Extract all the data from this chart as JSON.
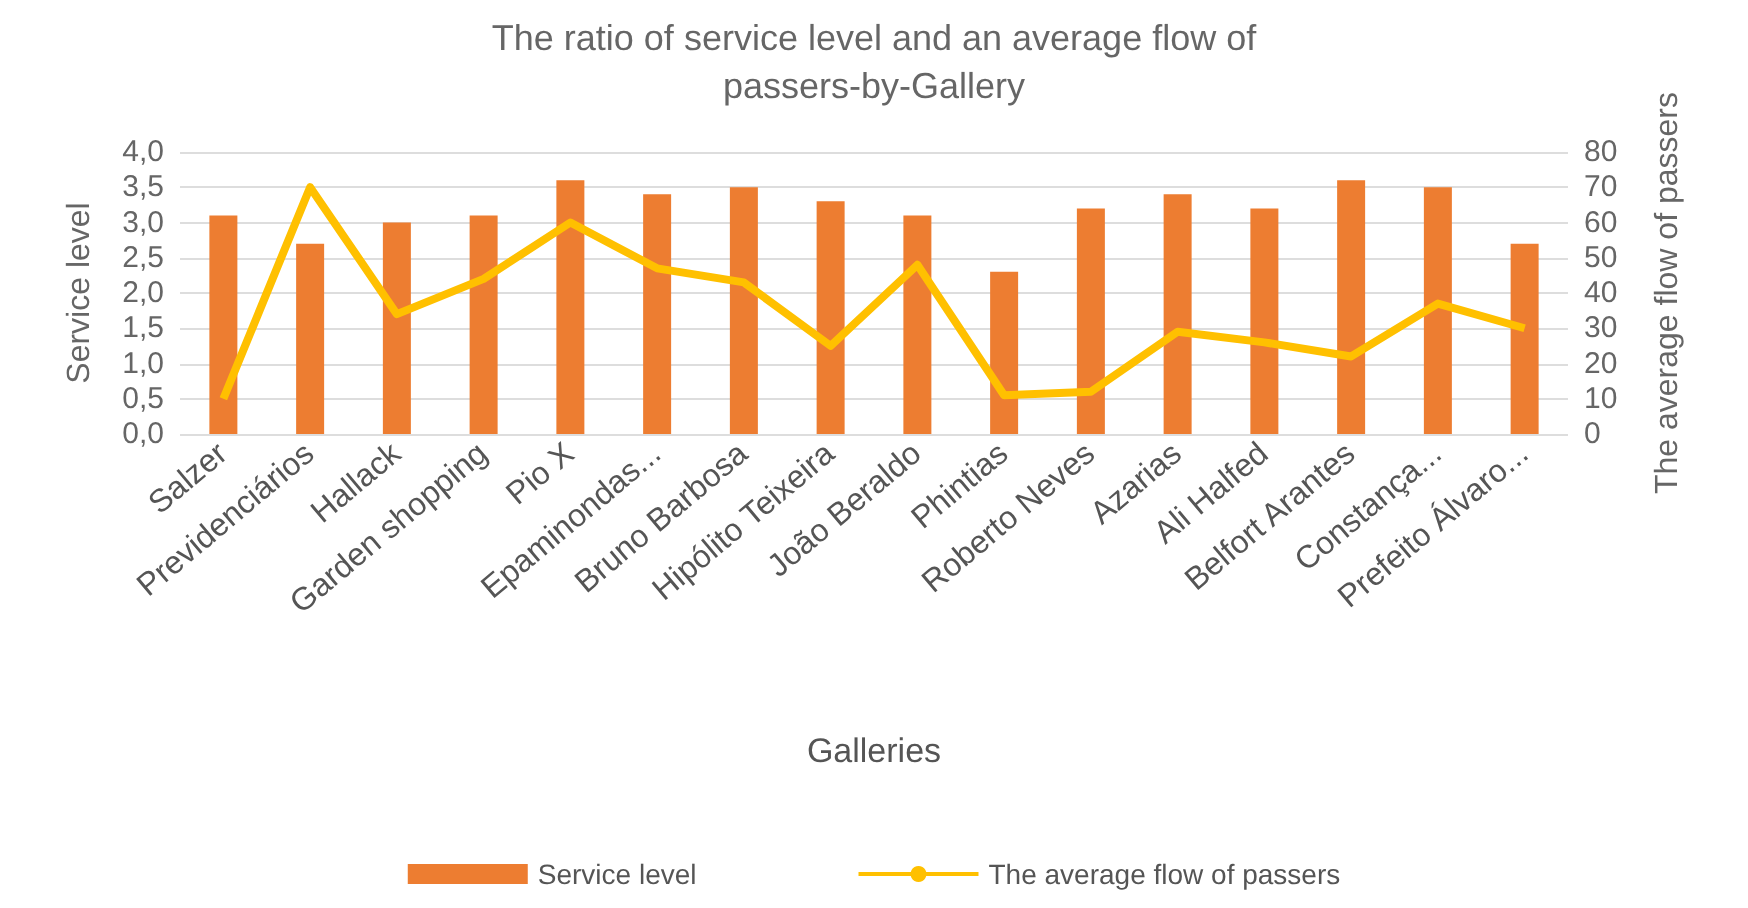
{
  "chart_data": {
    "type": "bar",
    "title": "The ratio of service level and an average flow of passers-by-Gallery",
    "xlabel": "Galleries",
    "ylabel": "Service level",
    "y2label": "The average flow of passers",
    "categories": [
      "Salzer",
      "Previdenciários",
      "Hallack",
      "Garden shopping",
      "Pio X",
      "Epaminondas...",
      "Bruno Barbosa",
      "Hipólito Teixeira",
      "João Beraldo",
      "Phintias",
      "Roberto Neves",
      "Azarias",
      "Ali Halfed",
      "Belfort Arantes",
      "Constança...",
      "Prefeito Álvaro..."
    ],
    "series": [
      {
        "name": "Service level",
        "color": "#ed7d31",
        "values": [
          3.1,
          2.7,
          3.0,
          3.1,
          3.6,
          3.4,
          3.5,
          3.3,
          3.1,
          2.3,
          3.2,
          3.4,
          3.2,
          3.6,
          3.5,
          2.7
        ]
      },
      {
        "name": "The average flow of passers",
        "type": "line",
        "axis": "y2",
        "color": "#ffc000",
        "values": [
          10,
          70,
          34,
          44,
          60,
          47,
          43,
          25,
          48,
          11,
          12,
          29,
          26,
          22,
          37,
          30
        ]
      }
    ],
    "ylim": [
      0,
      4
    ],
    "yticks": [
      {
        "value": 0,
        "label": "0,0"
      },
      {
        "value": 0.5,
        "label": "0,5"
      },
      {
        "value": 1,
        "label": "1,0"
      },
      {
        "value": 1.5,
        "label": "1,5"
      },
      {
        "value": 2,
        "label": "2,0"
      },
      {
        "value": 2.5,
        "label": "2,5"
      },
      {
        "value": 3,
        "label": "3,0"
      },
      {
        "value": 3.5,
        "label": "3,5"
      },
      {
        "value": 4,
        "label": "4,0"
      }
    ],
    "y2lim": [
      0,
      80
    ],
    "y2ticks": [
      0,
      10,
      20,
      30,
      40,
      50,
      60,
      70,
      80
    ],
    "grid": "y",
    "legend": "bottom",
    "marker": "none"
  }
}
